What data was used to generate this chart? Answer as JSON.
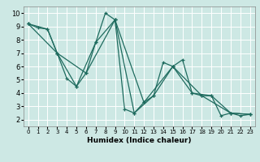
{
  "xlabel": "Humidex (Indice chaleur)",
  "ylabel": "",
  "xlim": [
    -0.5,
    23.5
  ],
  "ylim": [
    1.5,
    10.5
  ],
  "xticks": [
    0,
    1,
    2,
    3,
    4,
    5,
    6,
    7,
    8,
    9,
    10,
    11,
    12,
    13,
    14,
    15,
    16,
    17,
    18,
    19,
    20,
    21,
    22,
    23
  ],
  "yticks": [
    2,
    3,
    4,
    5,
    6,
    7,
    8,
    9,
    10
  ],
  "bg_color": "#cde8e4",
  "line_color": "#1e6b5e",
  "grid_color": "#ffffff",
  "series": [
    {
      "x": [
        0,
        1,
        2,
        3,
        4,
        5,
        6,
        7,
        8,
        9,
        10,
        11,
        12,
        13,
        14,
        15,
        16,
        17,
        18,
        19,
        20,
        21,
        22,
        23
      ],
      "y": [
        9.2,
        8.9,
        8.8,
        7.0,
        5.1,
        4.5,
        5.5,
        7.8,
        10.0,
        9.5,
        2.8,
        2.5,
        3.3,
        3.8,
        6.3,
        6.0,
        6.5,
        4.0,
        3.8,
        3.8,
        2.3,
        2.5,
        2.3,
        2.4
      ]
    },
    {
      "x": [
        0,
        2,
        3,
        5,
        7,
        9,
        11,
        13,
        15,
        17,
        19,
        21,
        23
      ],
      "y": [
        9.2,
        8.8,
        7.0,
        4.5,
        7.8,
        9.5,
        2.5,
        3.8,
        6.0,
        4.0,
        3.8,
        2.5,
        2.4
      ]
    },
    {
      "x": [
        0,
        3,
        6,
        9,
        12,
        15,
        18,
        21,
        23
      ],
      "y": [
        9.2,
        7.0,
        5.5,
        9.5,
        3.3,
        6.0,
        3.8,
        2.5,
        2.4
      ]
    }
  ]
}
